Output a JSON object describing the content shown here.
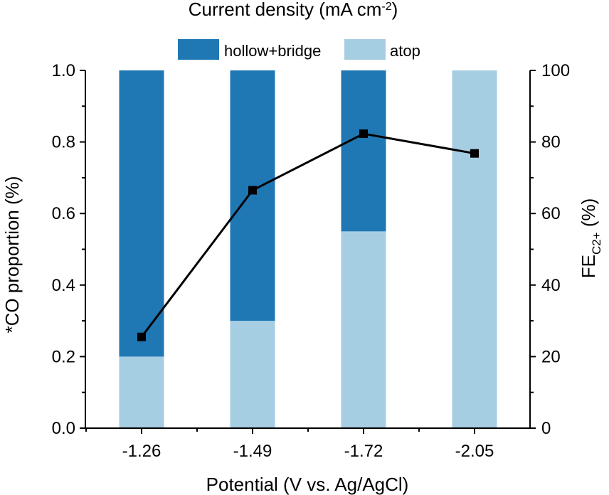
{
  "chart_data": {
    "type": "bar",
    "stacked": true,
    "top_label": "Current density (mA cm",
    "top_label_sup": "-2",
    "top_label_end": ")",
    "xlabel": "Potential (V vs. Ag/AgCl)",
    "ylabel": "*CO proportion  (%)",
    "y2label_main": "FE",
    "y2label_sub": "C2+",
    "y2label_end": " (%)",
    "categories": [
      "-1.26",
      "-1.49",
      "-1.72",
      "-2.05"
    ],
    "ylim": [
      0,
      1.0
    ],
    "y_ticks": [
      0.0,
      0.2,
      0.4,
      0.6,
      0.8,
      1.0
    ],
    "y_tick_labels": [
      "0.0",
      "0.2",
      "0.4",
      "0.6",
      "0.8",
      "1.0"
    ],
    "y2lim": [
      0,
      100
    ],
    "y2_ticks": [
      0,
      20,
      40,
      60,
      80,
      100
    ],
    "y2_tick_labels": [
      "0",
      "20",
      "40",
      "60",
      "80",
      "100"
    ],
    "series": [
      {
        "name": "atop",
        "color": "#a6cee3",
        "values": [
          0.2,
          0.3,
          0.55,
          1.0
        ]
      },
      {
        "name": "hollow+bridge",
        "color": "#1f78b4",
        "values": [
          0.8,
          0.7,
          0.45,
          0.0
        ]
      }
    ],
    "line_series": {
      "axis": "right",
      "color": "#000000",
      "values": [
        25.5,
        66.5,
        82.3,
        76.8
      ]
    },
    "legend": [
      "hollow+bridge",
      "atop"
    ],
    "legend_position": "top",
    "grid": false
  }
}
